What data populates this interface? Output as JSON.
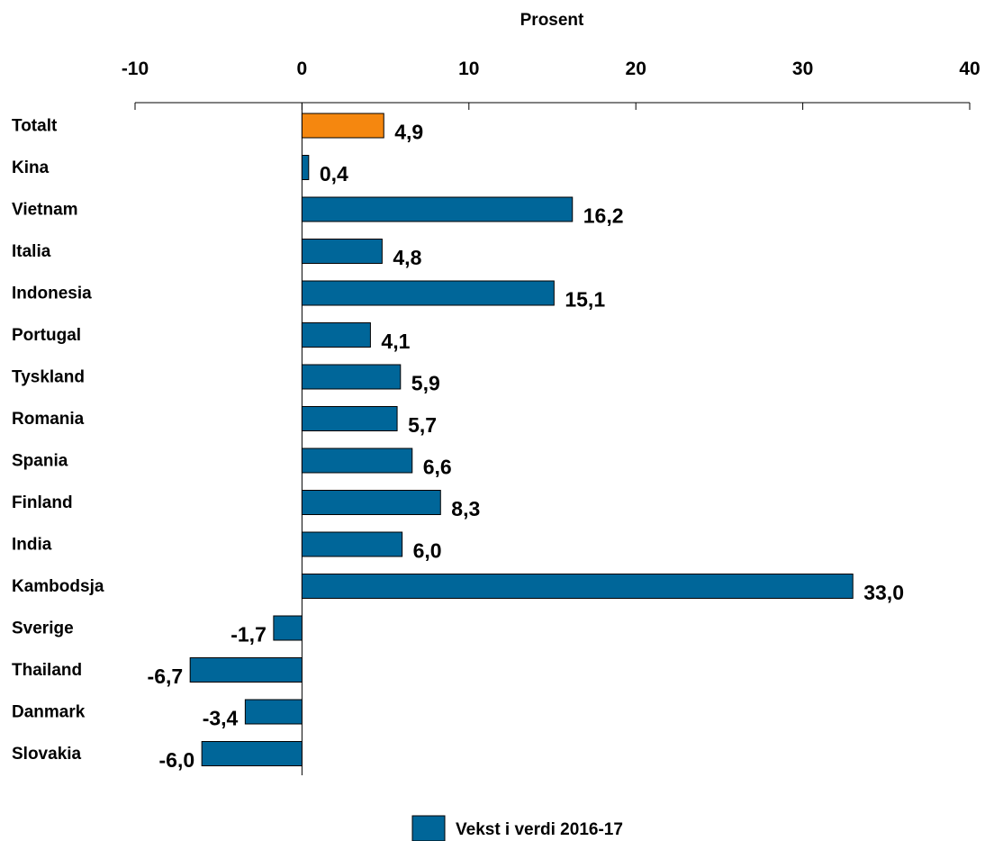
{
  "chart_data": {
    "type": "bar",
    "orientation": "horizontal",
    "xlabel": "Prosent",
    "xlim": [
      -10,
      40
    ],
    "xticks": [
      "-10",
      "0",
      "10",
      "20",
      "30",
      "40"
    ],
    "categories": [
      "Totalt",
      "Kina",
      "Vietnam",
      "Italia",
      "Indonesia",
      "Portugal",
      "Tyskland",
      "Romania",
      "Spania",
      "Finland",
      "India",
      "Kambodsja",
      "Sverige",
      "Thailand",
      "Danmark",
      "Slovakia"
    ],
    "series": [
      {
        "name": "Vekst i verdi 2016-17",
        "values": [
          4.9,
          0.4,
          16.2,
          4.8,
          15.1,
          4.1,
          5.9,
          5.7,
          6.6,
          8.3,
          6.0,
          33.0,
          -1.7,
          -6.7,
          -3.4,
          -6.0
        ],
        "labels": [
          "4,9",
          "0,4",
          "16,2",
          "4,8",
          "15,1",
          "4,1",
          "5,9",
          "5,7",
          "6,6",
          "8,3",
          "6,0",
          "33,0",
          "-1,7",
          "-6,7",
          "-3,4",
          "-6,0"
        ]
      }
    ],
    "colors": {
      "bar": "#006699",
      "highlight": "#f5870f",
      "stroke": "#000000"
    },
    "highlight_category": "Totalt",
    "legend_position": "bottom-center",
    "grid": false
  }
}
